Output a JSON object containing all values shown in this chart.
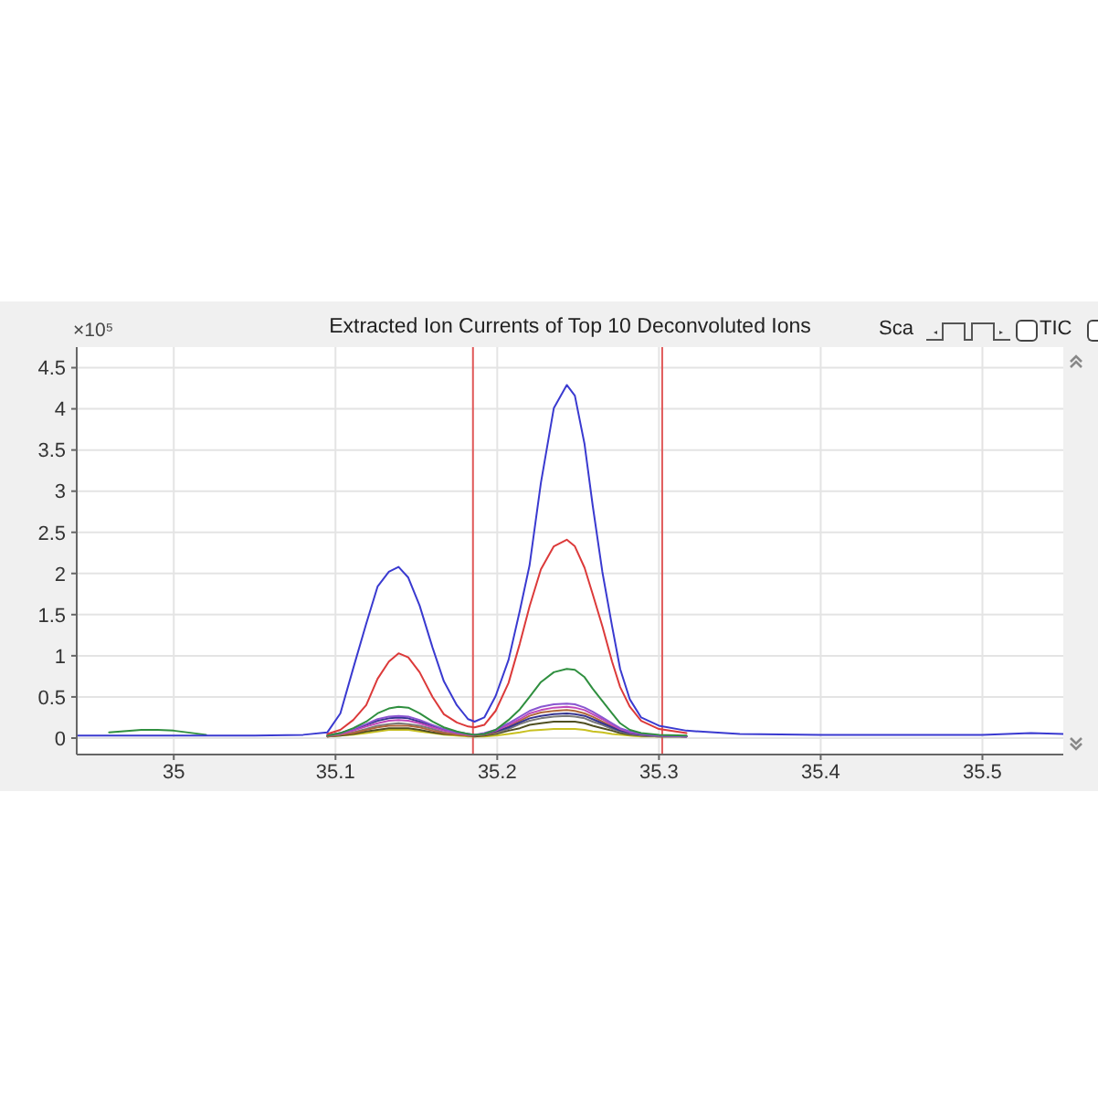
{
  "chart_data": {
    "type": "line",
    "title": "Extracted Ion Currents of Top 10 Deconvoluted Ions",
    "ylabel": "×10⁵",
    "annotations": [
      "Sca",
      "TIC"
    ],
    "x": [
      34.94,
      34.96,
      34.98,
      34.99,
      35.0,
      35.02,
      35.05,
      35.08,
      35.095,
      35.103,
      35.111,
      35.119,
      35.126,
      35.133,
      35.139,
      35.145,
      35.152,
      35.16,
      35.167,
      35.175,
      35.182,
      35.186,
      35.192,
      35.199,
      35.207,
      35.214,
      35.22,
      35.227,
      35.235,
      35.243,
      35.248,
      35.254,
      35.259,
      35.265,
      35.271,
      35.276,
      35.282,
      35.289,
      35.3,
      35.317,
      35.35,
      35.4,
      35.45,
      35.5,
      35.53,
      35.55
    ],
    "series": [
      {
        "color": "#3a3ad0",
        "values": [
          0.03,
          0.03,
          0.03,
          0.03,
          0.03,
          0.03,
          0.03,
          0.04,
          0.07,
          0.3,
          0.85,
          1.39,
          1.84,
          2.02,
          2.08,
          1.95,
          1.61,
          1.1,
          0.69,
          0.4,
          0.23,
          0.2,
          0.25,
          0.51,
          0.95,
          1.55,
          2.1,
          3.1,
          4.01,
          4.29,
          4.16,
          3.57,
          2.83,
          2.02,
          1.36,
          0.84,
          0.47,
          0.25,
          0.15,
          0.09,
          0.05,
          0.04,
          0.04,
          0.04,
          0.06,
          0.05
        ]
      },
      {
        "color": "#dc3a3a",
        "values": [
          null,
          null,
          null,
          null,
          null,
          null,
          null,
          null,
          0.05,
          0.1,
          0.22,
          0.4,
          0.72,
          0.93,
          1.03,
          0.98,
          0.8,
          0.5,
          0.29,
          0.19,
          0.14,
          0.13,
          0.16,
          0.33,
          0.67,
          1.15,
          1.6,
          2.05,
          2.33,
          2.41,
          2.33,
          2.07,
          1.75,
          1.36,
          0.93,
          0.62,
          0.38,
          0.21,
          0.11,
          0.06,
          null,
          null,
          null,
          null,
          null,
          null
        ]
      },
      {
        "color": "#2f8f3f",
        "values": [
          null,
          0.07,
          0.1,
          0.1,
          0.09,
          0.04,
          null,
          null,
          0.03,
          0.06,
          0.12,
          0.2,
          0.3,
          0.36,
          0.38,
          0.37,
          0.3,
          0.2,
          0.13,
          0.08,
          0.05,
          0.04,
          0.05,
          0.1,
          0.22,
          0.35,
          0.5,
          0.68,
          0.8,
          0.84,
          0.83,
          0.74,
          0.6,
          0.45,
          0.3,
          0.18,
          0.1,
          0.06,
          0.04,
          0.03,
          null,
          null,
          null,
          null,
          null,
          null
        ]
      },
      {
        "color": "#8a55d0",
        "values": [
          null,
          null,
          null,
          null,
          null,
          null,
          null,
          null,
          0.03,
          0.06,
          0.11,
          0.17,
          0.23,
          0.26,
          0.27,
          0.26,
          0.22,
          0.16,
          0.11,
          0.07,
          0.05,
          0.04,
          0.06,
          0.1,
          0.18,
          0.26,
          0.33,
          0.38,
          0.41,
          0.42,
          0.41,
          0.37,
          0.32,
          0.25,
          0.18,
          0.12,
          0.08,
          0.05,
          0.03,
          0.02,
          null,
          null,
          null,
          null,
          null,
          null
        ]
      },
      {
        "color": "#c048b8",
        "values": [
          null,
          null,
          null,
          null,
          null,
          null,
          null,
          null,
          0.03,
          0.05,
          0.09,
          0.14,
          0.18,
          0.21,
          0.22,
          0.21,
          0.18,
          0.13,
          0.09,
          0.06,
          0.04,
          0.04,
          0.05,
          0.09,
          0.16,
          0.23,
          0.3,
          0.34,
          0.37,
          0.38,
          0.37,
          0.34,
          0.29,
          0.23,
          0.16,
          0.11,
          0.07,
          0.05,
          0.03,
          0.02,
          null,
          null,
          null,
          null,
          null,
          null
        ]
      },
      {
        "color": "#34348f",
        "values": [
          null,
          null,
          null,
          null,
          null,
          null,
          null,
          null,
          0.03,
          0.06,
          0.1,
          0.16,
          0.21,
          0.24,
          0.25,
          0.24,
          0.2,
          0.15,
          0.1,
          0.07,
          0.05,
          0.04,
          0.05,
          0.08,
          0.13,
          0.19,
          0.24,
          0.27,
          0.29,
          0.3,
          0.29,
          0.27,
          0.23,
          0.18,
          0.13,
          0.09,
          0.06,
          0.04,
          0.03,
          0.02,
          null,
          null,
          null,
          null,
          null,
          null
        ]
      },
      {
        "color": "#b0683a",
        "values": [
          null,
          null,
          null,
          null,
          null,
          null,
          null,
          null,
          0.02,
          0.04,
          0.06,
          0.1,
          0.13,
          0.15,
          0.15,
          0.15,
          0.13,
          0.09,
          0.06,
          0.04,
          0.03,
          0.03,
          0.04,
          0.07,
          0.14,
          0.21,
          0.27,
          0.31,
          0.33,
          0.34,
          0.33,
          0.3,
          0.26,
          0.2,
          0.14,
          0.1,
          0.06,
          0.04,
          0.03,
          0.02,
          null,
          null,
          null,
          null,
          null,
          null
        ]
      },
      {
        "color": "#7a7a7a",
        "values": [
          null,
          null,
          null,
          null,
          null,
          null,
          null,
          null,
          0.02,
          0.04,
          0.07,
          0.11,
          0.15,
          0.17,
          0.18,
          0.17,
          0.15,
          0.11,
          0.07,
          0.05,
          0.03,
          0.03,
          0.04,
          0.06,
          0.11,
          0.17,
          0.21,
          0.24,
          0.26,
          0.27,
          0.26,
          0.24,
          0.2,
          0.16,
          0.11,
          0.08,
          0.05,
          0.03,
          0.02,
          0.02,
          null,
          null,
          null,
          null,
          null,
          null
        ]
      },
      {
        "color": "#4f4f22",
        "values": [
          null,
          null,
          null,
          null,
          null,
          null,
          null,
          null,
          0.02,
          0.03,
          0.05,
          0.08,
          0.1,
          0.12,
          0.12,
          0.12,
          0.1,
          0.07,
          0.05,
          0.04,
          0.03,
          0.02,
          0.03,
          0.05,
          0.09,
          0.12,
          0.16,
          0.18,
          0.2,
          0.2,
          0.2,
          0.18,
          0.15,
          0.12,
          0.09,
          0.06,
          0.04,
          0.03,
          0.02,
          0.02,
          null,
          null,
          null,
          null,
          null,
          null
        ]
      },
      {
        "color": "#c8c020",
        "values": [
          null,
          null,
          null,
          null,
          null,
          null,
          null,
          null,
          0.02,
          0.03,
          0.04,
          0.06,
          0.08,
          0.1,
          0.1,
          0.1,
          0.08,
          0.06,
          0.04,
          0.03,
          0.02,
          0.02,
          0.02,
          0.03,
          0.05,
          0.07,
          0.09,
          0.1,
          0.11,
          0.11,
          0.11,
          0.1,
          0.08,
          0.07,
          0.05,
          0.04,
          0.03,
          0.02,
          0.02,
          0.02,
          null,
          null,
          null,
          null,
          null,
          null
        ]
      }
    ],
    "xlim": [
      34.94,
      35.55
    ],
    "xticks": [
      35,
      35.1,
      35.2,
      35.3,
      35.4,
      35.5
    ],
    "ylim": [
      -0.2,
      4.75
    ],
    "yticks": [
      0,
      0.5,
      1,
      1.5,
      2,
      2.5,
      3,
      3.5,
      4,
      4.5
    ],
    "ref_lines": [
      {
        "axis": "x",
        "value": 35.185,
        "color": "#e05858"
      },
      {
        "axis": "x",
        "value": 35.302,
        "color": "#e05858"
      }
    ],
    "grid": true,
    "marker": "none"
  }
}
